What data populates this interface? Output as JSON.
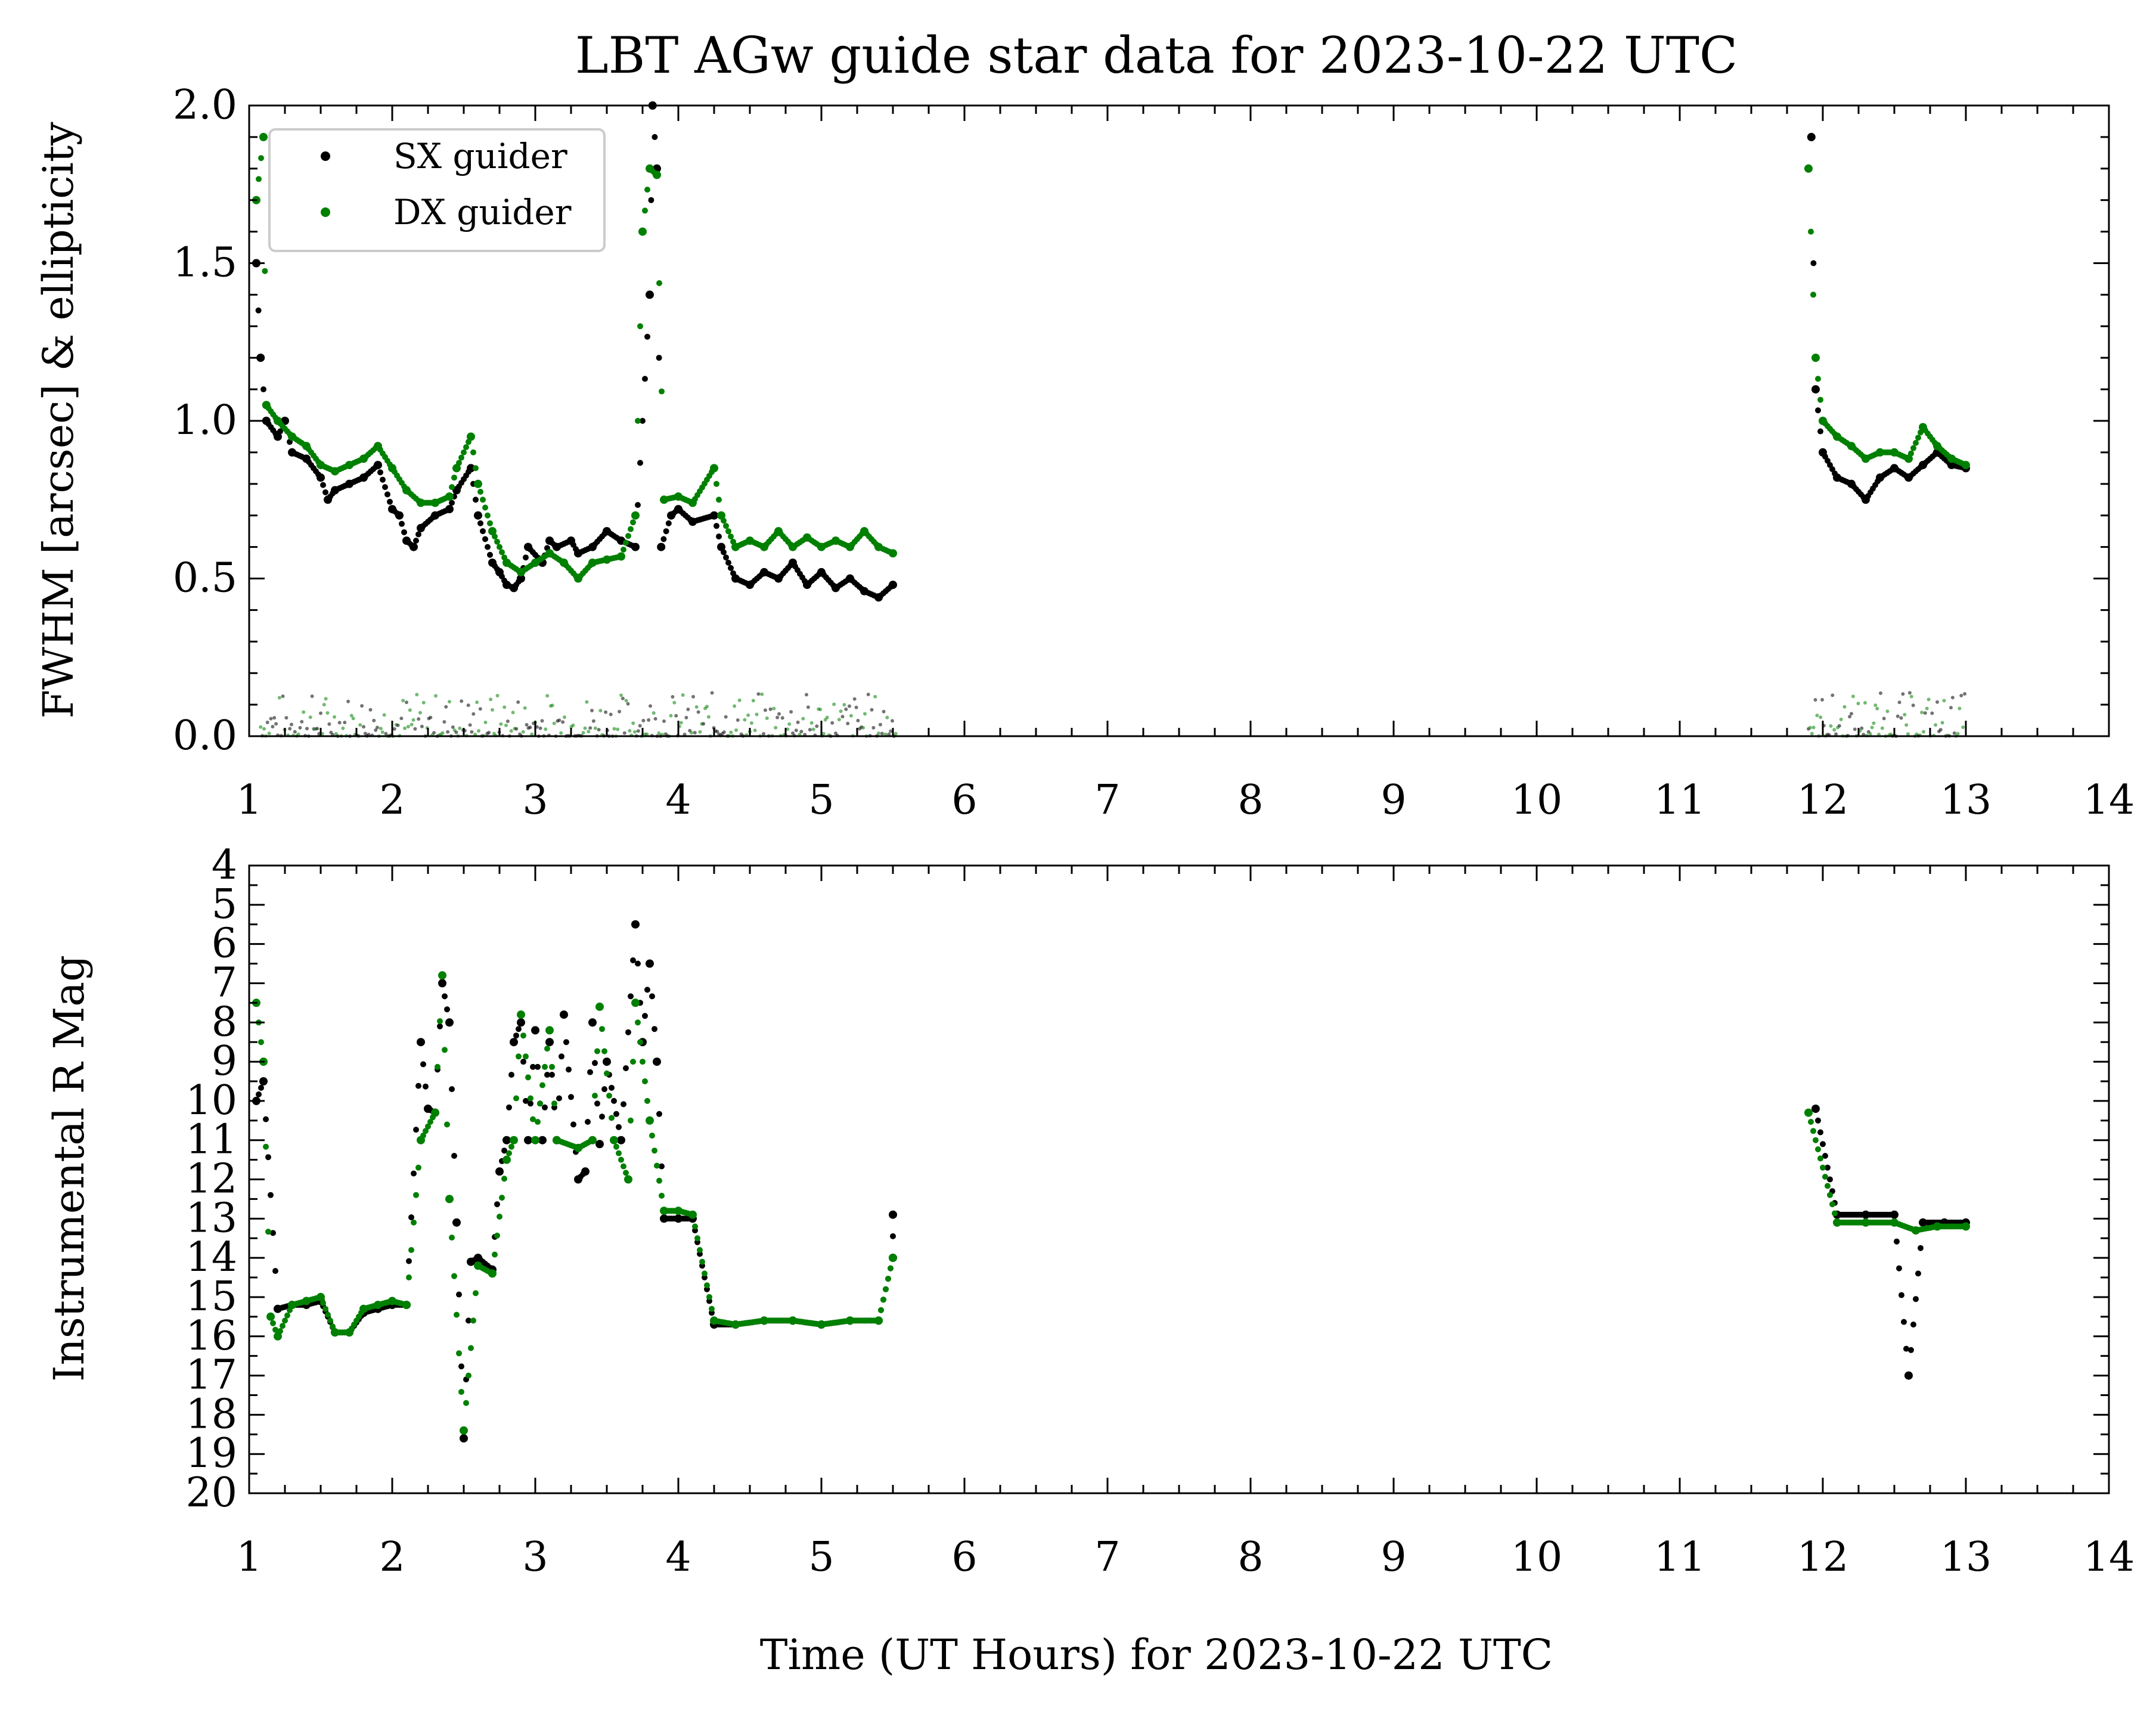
{
  "figure_title": "LBT AGw guide star data for 2023-10-22 UTC",
  "xlabel": "Time (UT Hours) for 2023-10-22 UTC",
  "colors": {
    "sx": "#000000",
    "dx": "#008000"
  },
  "legend": {
    "items": [
      "SX guider",
      "DX guider"
    ],
    "placement": "top-left"
  },
  "chart_data": [
    {
      "type": "scatter",
      "title": "LBT AGw guide star data for 2023-10-22 UTC",
      "xlabel": "",
      "ylabel": "FWHM [arcsec] & ellipticity",
      "xlim": [
        1,
        14
      ],
      "ylim": [
        0,
        2
      ],
      "xticks": [
        "1",
        "2",
        "3",
        "4",
        "5",
        "6",
        "7",
        "8",
        "9",
        "10",
        "11",
        "12",
        "13",
        "14"
      ],
      "yticks": [
        "0.0",
        "0.5",
        "1.0",
        "1.5",
        "2.0"
      ],
      "legend": [
        "SX guider",
        "DX guider"
      ],
      "series": [
        {
          "name": "SX guider",
          "kind": "fwhm",
          "points": [
            [
              1.05,
              1.5
            ],
            [
              1.08,
              1.2
            ],
            [
              1.12,
              1.0
            ],
            [
              1.2,
              0.95
            ],
            [
              1.25,
              1.0
            ],
            [
              1.3,
              0.9
            ],
            [
              1.4,
              0.88
            ],
            [
              1.5,
              0.82
            ],
            [
              1.55,
              0.75
            ],
            [
              1.6,
              0.78
            ],
            [
              1.7,
              0.8
            ],
            [
              1.8,
              0.82
            ],
            [
              1.9,
              0.86
            ],
            [
              2.0,
              0.72
            ],
            [
              2.05,
              0.7
            ],
            [
              2.1,
              0.62
            ],
            [
              2.15,
              0.6
            ],
            [
              2.2,
              0.66
            ],
            [
              2.3,
              0.7
            ],
            [
              2.4,
              0.72
            ],
            [
              2.45,
              0.78
            ],
            [
              2.55,
              0.85
            ],
            [
              2.6,
              0.7
            ],
            [
              2.7,
              0.55
            ],
            [
              2.75,
              0.52
            ],
            [
              2.8,
              0.48
            ],
            [
              2.85,
              0.47
            ],
            [
              2.9,
              0.5
            ],
            [
              2.95,
              0.6
            ],
            [
              3.05,
              0.55
            ],
            [
              3.1,
              0.62
            ],
            [
              3.15,
              0.6
            ],
            [
              3.25,
              0.62
            ],
            [
              3.3,
              0.58
            ],
            [
              3.4,
              0.6
            ],
            [
              3.5,
              0.65
            ],
            [
              3.6,
              0.62
            ],
            [
              3.7,
              0.6
            ],
            [
              3.8,
              1.4
            ],
            [
              3.82,
              2.0
            ],
            [
              3.85,
              1.8
            ],
            [
              3.88,
              0.6
            ],
            [
              3.95,
              0.7
            ],
            [
              4.0,
              0.72
            ],
            [
              4.1,
              0.68
            ],
            [
              4.25,
              0.7
            ],
            [
              4.3,
              0.6
            ],
            [
              4.4,
              0.5
            ],
            [
              4.5,
              0.48
            ],
            [
              4.6,
              0.52
            ],
            [
              4.7,
              0.5
            ],
            [
              4.8,
              0.55
            ],
            [
              4.9,
              0.48
            ],
            [
              5.0,
              0.52
            ],
            [
              5.1,
              0.47
            ],
            [
              5.2,
              0.5
            ],
            [
              5.3,
              0.46
            ],
            [
              5.4,
              0.44
            ],
            [
              5.5,
              0.48
            ],
            [
              11.92,
              1.9
            ],
            [
              11.95,
              1.1
            ],
            [
              12.0,
              0.9
            ],
            [
              12.1,
              0.82
            ],
            [
              12.2,
              0.8
            ],
            [
              12.3,
              0.75
            ],
            [
              12.4,
              0.82
            ],
            [
              12.5,
              0.85
            ],
            [
              12.6,
              0.82
            ],
            [
              12.7,
              0.86
            ],
            [
              12.8,
              0.9
            ],
            [
              12.9,
              0.86
            ],
            [
              13.0,
              0.85
            ]
          ]
        },
        {
          "name": "DX guider",
          "kind": "fwhm",
          "points": [
            [
              1.05,
              1.7
            ],
            [
              1.1,
              1.9
            ],
            [
              1.12,
              1.05
            ],
            [
              1.2,
              1.0
            ],
            [
              1.3,
              0.95
            ],
            [
              1.4,
              0.92
            ],
            [
              1.5,
              0.86
            ],
            [
              1.6,
              0.84
            ],
            [
              1.7,
              0.86
            ],
            [
              1.8,
              0.88
            ],
            [
              1.9,
              0.92
            ],
            [
              2.0,
              0.85
            ],
            [
              2.1,
              0.78
            ],
            [
              2.2,
              0.74
            ],
            [
              2.3,
              0.74
            ],
            [
              2.4,
              0.76
            ],
            [
              2.45,
              0.85
            ],
            [
              2.55,
              0.95
            ],
            [
              2.6,
              0.8
            ],
            [
              2.7,
              0.65
            ],
            [
              2.8,
              0.55
            ],
            [
              2.9,
              0.52
            ],
            [
              3.0,
              0.55
            ],
            [
              3.1,
              0.58
            ],
            [
              3.2,
              0.55
            ],
            [
              3.3,
              0.5
            ],
            [
              3.4,
              0.55
            ],
            [
              3.5,
              0.56
            ],
            [
              3.6,
              0.57
            ],
            [
              3.7,
              0.7
            ],
            [
              3.75,
              1.6
            ],
            [
              3.8,
              1.8
            ],
            [
              3.85,
              1.78
            ],
            [
              3.9,
              0.75
            ],
            [
              4.0,
              0.76
            ],
            [
              4.1,
              0.74
            ],
            [
              4.25,
              0.85
            ],
            [
              4.3,
              0.7
            ],
            [
              4.4,
              0.6
            ],
            [
              4.5,
              0.62
            ],
            [
              4.6,
              0.6
            ],
            [
              4.7,
              0.65
            ],
            [
              4.8,
              0.6
            ],
            [
              4.9,
              0.63
            ],
            [
              5.0,
              0.6
            ],
            [
              5.1,
              0.62
            ],
            [
              5.2,
              0.6
            ],
            [
              5.3,
              0.65
            ],
            [
              5.4,
              0.6
            ],
            [
              5.5,
              0.58
            ],
            [
              11.9,
              1.8
            ],
            [
              11.95,
              1.2
            ],
            [
              12.0,
              1.0
            ],
            [
              12.1,
              0.95
            ],
            [
              12.2,
              0.92
            ],
            [
              12.3,
              0.88
            ],
            [
              12.4,
              0.9
            ],
            [
              12.5,
              0.9
            ],
            [
              12.6,
              0.88
            ],
            [
              12.7,
              0.98
            ],
            [
              12.8,
              0.92
            ],
            [
              12.9,
              0.88
            ],
            [
              13.0,
              0.86
            ]
          ]
        }
      ]
    },
    {
      "type": "scatter",
      "title": "",
      "xlabel": "Time (UT Hours) for 2023-10-22 UTC",
      "ylabel": "Instrumental R Mag",
      "xlim": [
        1,
        14
      ],
      "ylim": [
        20,
        4
      ],
      "y_inverted": true,
      "xticks": [
        "1",
        "2",
        "3",
        "4",
        "5",
        "6",
        "7",
        "8",
        "9",
        "10",
        "11",
        "12",
        "13",
        "14"
      ],
      "yticks": [
        "4",
        "5",
        "6",
        "7",
        "8",
        "9",
        "10",
        "11",
        "12",
        "13",
        "14",
        "15",
        "16",
        "17",
        "18",
        "19",
        "20"
      ],
      "series": [
        {
          "name": "SX guider",
          "points": [
            [
              1.05,
              10
            ],
            [
              1.1,
              9.5
            ],
            [
              1.2,
              15.3
            ],
            [
              1.3,
              15.2
            ],
            [
              1.4,
              15.2
            ],
            [
              1.5,
              15.1
            ],
            [
              1.6,
              15.9
            ],
            [
              1.7,
              15.9
            ],
            [
              1.8,
              15.4
            ],
            [
              1.9,
              15.3
            ],
            [
              2.0,
              15.2
            ],
            [
              2.1,
              15.2
            ],
            [
              2.2,
              8.5
            ],
            [
              2.25,
              10.2
            ],
            [
              2.3,
              10.3
            ],
            [
              2.35,
              7.0
            ],
            [
              2.4,
              8.0
            ],
            [
              2.45,
              13.1
            ],
            [
              2.5,
              18.6
            ],
            [
              2.55,
              14.1
            ],
            [
              2.6,
              14.0
            ],
            [
              2.7,
              14.3
            ],
            [
              2.75,
              11.8
            ],
            [
              2.8,
              11.0
            ],
            [
              2.85,
              8.5
            ],
            [
              2.9,
              8.0
            ],
            [
              2.95,
              11.0
            ],
            [
              3.0,
              8.2
            ],
            [
              3.05,
              11.0
            ],
            [
              3.1,
              8.5
            ],
            [
              3.15,
              11.0
            ],
            [
              3.2,
              7.8
            ],
            [
              3.3,
              12.0
            ],
            [
              3.35,
              11.8
            ],
            [
              3.4,
              8.0
            ],
            [
              3.45,
              11.1
            ],
            [
              3.5,
              9.0
            ],
            [
              3.6,
              11.0
            ],
            [
              3.7,
              5.5
            ],
            [
              3.75,
              8.5
            ],
            [
              3.8,
              6.5
            ],
            [
              3.85,
              9.0
            ],
            [
              3.9,
              13.0
            ],
            [
              4.0,
              13.0
            ],
            [
              4.1,
              13.0
            ],
            [
              4.25,
              15.7
            ],
            [
              4.4,
              15.7
            ],
            [
              4.6,
              15.6
            ],
            [
              4.8,
              15.6
            ],
            [
              5.0,
              15.7
            ],
            [
              5.2,
              15.6
            ],
            [
              5.4,
              15.6
            ],
            [
              5.5,
              14.0
            ],
            [
              5.5,
              12.9
            ],
            [
              11.95,
              10.2
            ],
            [
              12.1,
              12.9
            ],
            [
              12.3,
              12.9
            ],
            [
              12.5,
              12.9
            ],
            [
              12.6,
              17.0
            ],
            [
              12.7,
              13.1
            ],
            [
              12.85,
              13.1
            ],
            [
              13.0,
              13.1
            ]
          ]
        },
        {
          "name": "DX guider",
          "points": [
            [
              1.05,
              7.5
            ],
            [
              1.1,
              9.0
            ],
            [
              1.15,
              15.5
            ],
            [
              1.2,
              16.0
            ],
            [
              1.3,
              15.2
            ],
            [
              1.4,
              15.1
            ],
            [
              1.5,
              15.0
            ],
            [
              1.6,
              15.9
            ],
            [
              1.7,
              15.9
            ],
            [
              1.8,
              15.3
            ],
            [
              1.9,
              15.2
            ],
            [
              2.0,
              15.1
            ],
            [
              2.1,
              15.2
            ],
            [
              2.2,
              11.0
            ],
            [
              2.3,
              10.3
            ],
            [
              2.35,
              6.8
            ],
            [
              2.4,
              12.5
            ],
            [
              2.5,
              18.4
            ],
            [
              2.6,
              14.2
            ],
            [
              2.7,
              14.4
            ],
            [
              2.8,
              11.5
            ],
            [
              2.85,
              11.0
            ],
            [
              2.9,
              7.8
            ],
            [
              3.0,
              11.0
            ],
            [
              3.1,
              8.2
            ],
            [
              3.15,
              11.0
            ],
            [
              3.3,
              11.2
            ],
            [
              3.4,
              11.0
            ],
            [
              3.45,
              7.6
            ],
            [
              3.55,
              11.0
            ],
            [
              3.65,
              12.0
            ],
            [
              3.7,
              7.5
            ],
            [
              3.8,
              10.5
            ],
            [
              3.9,
              12.8
            ],
            [
              4.0,
              12.8
            ],
            [
              4.1,
              12.9
            ],
            [
              4.25,
              15.6
            ],
            [
              4.4,
              15.7
            ],
            [
              4.6,
              15.6
            ],
            [
              4.8,
              15.6
            ],
            [
              5.0,
              15.7
            ],
            [
              5.2,
              15.6
            ],
            [
              5.4,
              15.6
            ],
            [
              5.5,
              14.0
            ],
            [
              11.9,
              10.3
            ],
            [
              12.1,
              13.1
            ],
            [
              12.3,
              13.1
            ],
            [
              12.5,
              13.1
            ],
            [
              12.65,
              13.3
            ],
            [
              12.8,
              13.2
            ],
            [
              13.0,
              13.2
            ]
          ]
        }
      ]
    }
  ]
}
